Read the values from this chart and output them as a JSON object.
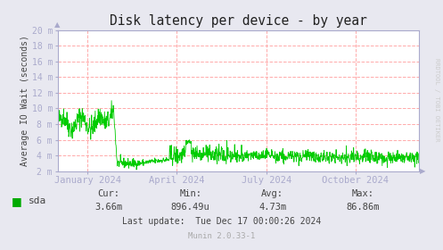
{
  "title": "Disk latency per device - by year",
  "ylabel": "Average IO Wait (seconds)",
  "bg_color": "#e8e8f0",
  "plot_bg_color": "#ffffff",
  "grid_color": "#ffaaaa",
  "line_color": "#00cc00",
  "title_color": "#222222",
  "axis_color": "#aaaacc",
  "text_color": "#444444",
  "legend_label": "sda",
  "legend_color": "#00aa00",
  "cur_label": "Cur:",
  "cur_val": "3.66m",
  "min_label": "Min:",
  "min_val": "896.49u",
  "avg_label": "Avg:",
  "avg_val": "4.73m",
  "max_label": "Max:",
  "max_val": "86.86m",
  "last_update": "Last update:  Tue Dec 17 00:00:26 2024",
  "munin_version": "Munin 2.0.33-1",
  "watermark": "RRDTOOL / TOBI OETIKER",
  "ylim_min": 0.002,
  "ylim_max": 0.02,
  "ytick_vals": [
    0.002,
    0.004,
    0.006,
    0.008,
    0.01,
    0.012,
    0.014,
    0.016,
    0.018,
    0.02
  ],
  "ytick_labels": [
    "2 m",
    "4 m",
    "6 m",
    "8 m",
    "10 m",
    "12 m",
    "14 m",
    "16 m",
    "18 m",
    "20 m"
  ],
  "xtick_labels": [
    "January 2024",
    "April 2024",
    "July 2024",
    "October 2024"
  ],
  "xtick_positions": [
    0.083,
    0.33,
    0.578,
    0.825
  ]
}
